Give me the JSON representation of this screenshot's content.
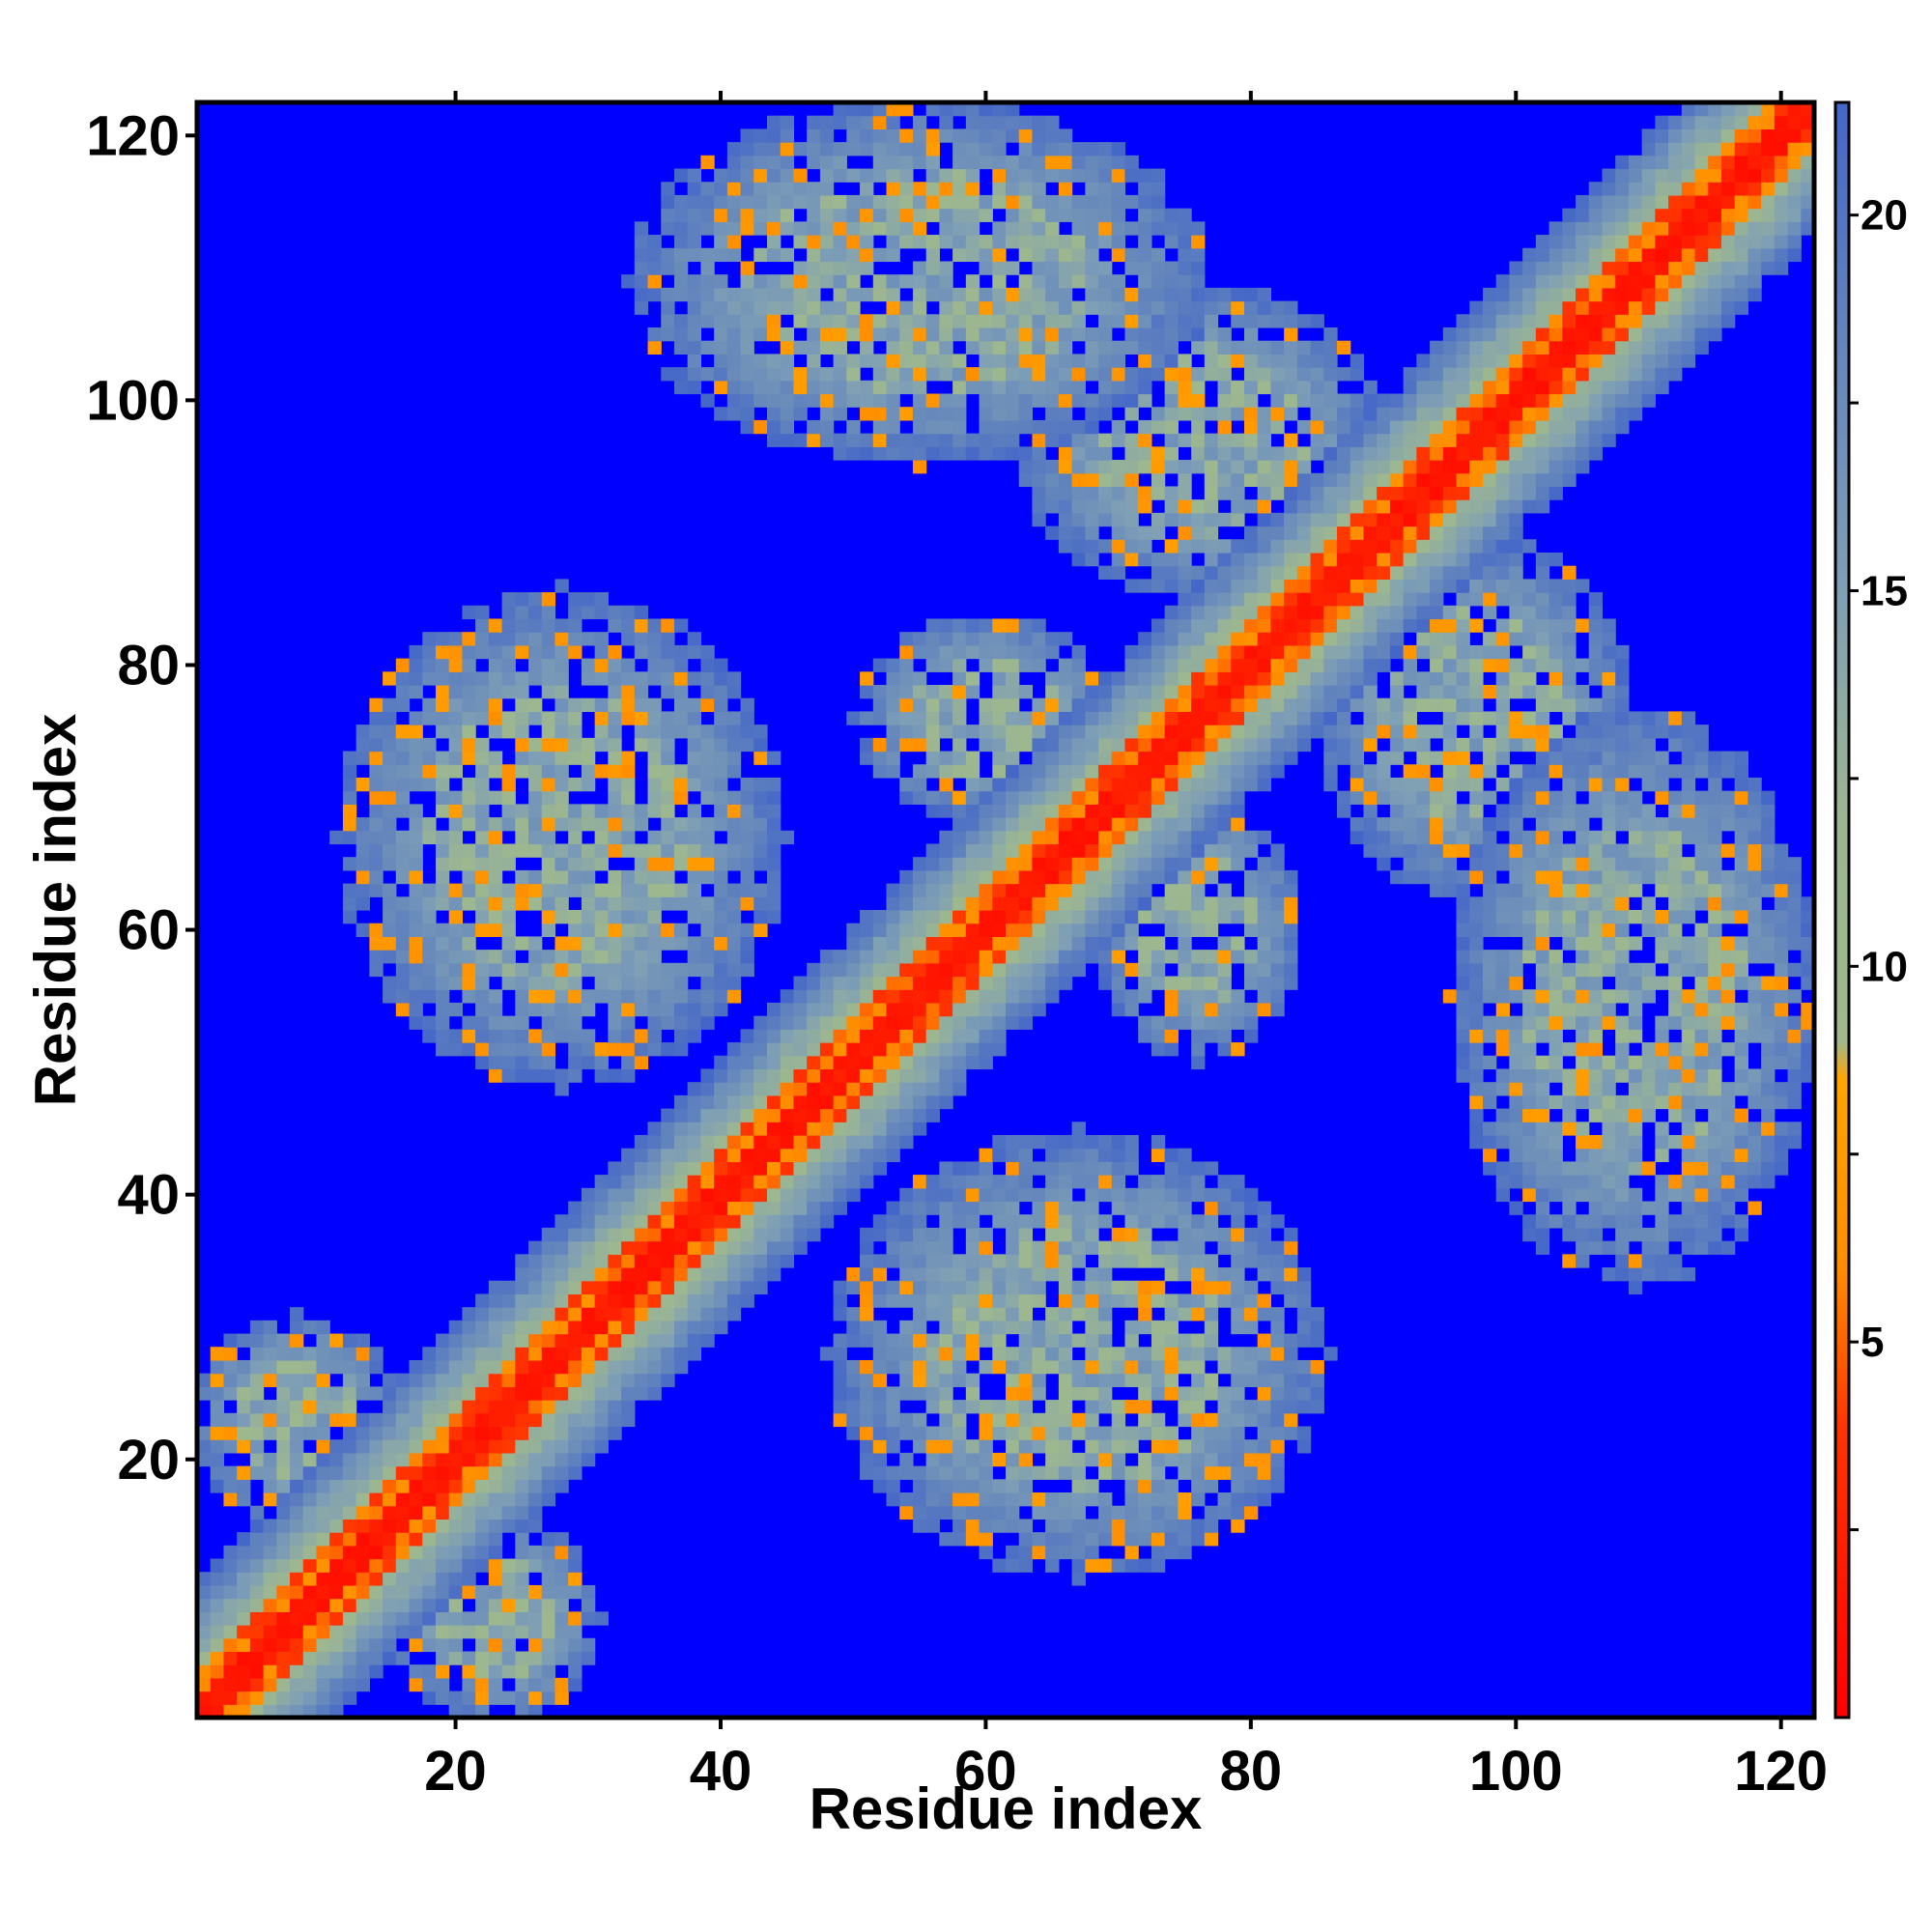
{
  "chart_data": {
    "type": "heatmap",
    "title": "",
    "xlabel": "Residue index",
    "ylabel": "Residue index",
    "n_residues": 122,
    "xlim": [
      1,
      122
    ],
    "ylim": [
      1,
      122
    ],
    "x_ticks": [
      20,
      40,
      60,
      80,
      100,
      120
    ],
    "y_ticks": [
      20,
      40,
      60,
      80,
      100,
      120
    ],
    "x_tick_labels": [
      "20",
      "40",
      "60",
      "80",
      "100",
      "120"
    ],
    "y_tick_labels": [
      "20",
      "40",
      "60",
      "80",
      "100",
      "120"
    ],
    "symmetric": true,
    "value_description": "pairwise residue distance",
    "colorbar": {
      "range": [
        0,
        21.5
      ],
      "ticks": [
        5,
        10,
        15,
        20
      ],
      "tick_labels": [
        "5",
        "10",
        "15",
        "20"
      ],
      "stops": [
        {
          "value": 0,
          "color": "#ff0000"
        },
        {
          "value": 3.8,
          "color": "#ff3300"
        },
        {
          "value": 6,
          "color": "#ff8c00"
        },
        {
          "value": 8.5,
          "color": "#ffa500"
        },
        {
          "value": 9,
          "color": "#9fb98b"
        },
        {
          "value": 12,
          "color": "#9cb691"
        },
        {
          "value": 15,
          "color": "#7f9fb5"
        },
        {
          "value": 18,
          "color": "#6688bb"
        },
        {
          "value": 21.5,
          "color": "#4466c8"
        }
      ]
    },
    "background_color": "#0000ff",
    "diagonal_band": {
      "core_halfwidth": 1.5,
      "orange_halfwidth": 3,
      "green_halfwidth": 7.5,
      "blue_halfwidth": 10
    },
    "contact_regions": [
      {
        "x_center": 28,
        "y_center": 67,
        "x_halfwidth": 17,
        "y_halfwidth": 19
      },
      {
        "x_center": 55,
        "y_center": 109,
        "x_halfwidth": 22,
        "y_halfwidth": 14
      },
      {
        "x_center": 76,
        "y_center": 97,
        "x_halfwidth": 14,
        "y_halfwidth": 12
      },
      {
        "x_center": 60,
        "y_center": 76,
        "x_halfwidth": 10,
        "y_halfwidth": 8
      },
      {
        "x_center": 8,
        "y_center": 23,
        "x_halfwidth": 8,
        "y_halfwidth": 8
      }
    ]
  }
}
